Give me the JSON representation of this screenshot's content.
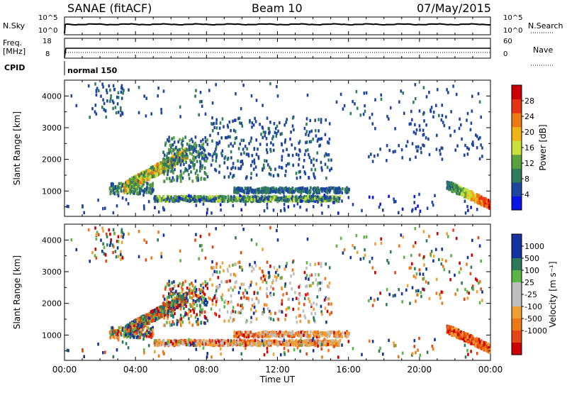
{
  "header": {
    "radar": "SANAE (fitACF)",
    "beam": "Beam 10",
    "date": "07/May/2015"
  },
  "noise_panel": {
    "left_label": "N.Sky",
    "left_ticks": [
      "10^5",
      "10^0"
    ],
    "right_label": "N.Search",
    "right_ticks": [
      "10^5",
      "10^0"
    ]
  },
  "freq_panel": {
    "left_label_1": "Freq.",
    "left_label_2": "[MHz]",
    "left_ticks": [
      "18",
      "8"
    ],
    "right_label": "Nave",
    "right_ticks": [
      "60",
      "0"
    ]
  },
  "cpid": {
    "label": "CPID",
    "value": "normal 150"
  },
  "colors": {
    "power": [
      "#0a14e6",
      "#1e46a0",
      "#2e7d5a",
      "#5aa03c",
      "#c8e03c",
      "#f0b418",
      "#f07814",
      "#e63214",
      "#cc0000"
    ],
    "velocity_pos": [
      "#1432a0",
      "#2d7a5a",
      "#5ab446"
    ],
    "velocity_mid": "#bebebe",
    "velocity_neg": [
      "#f0a030",
      "#f07814",
      "#e64614",
      "#cc0000"
    ]
  },
  "chart_data": [
    {
      "type": "line",
      "panel": "noise",
      "series": [
        {
          "name": "N.Sky",
          "style": "solid"
        },
        {
          "name": "N.Search",
          "style": "dotted"
        }
      ]
    },
    {
      "type": "line",
      "panel": "frequency",
      "series": [
        {
          "name": "Freq.",
          "style": "solid"
        },
        {
          "name": "Nave",
          "style": "dotted"
        }
      ]
    },
    {
      "type": "heatmap",
      "panel": "power",
      "ylabel": "Slant Range [km]",
      "ylim": [
        200,
        4500
      ],
      "yticks": [
        "1000",
        "2000",
        "3000",
        "4000"
      ],
      "xlim": [
        "00:00",
        "24:00"
      ],
      "colorbar_label": "Power [dB]",
      "colorbar_ticks": [
        "4",
        "8",
        "12",
        "16",
        "20",
        "24",
        "28"
      ],
      "colorbar_range": [
        0,
        32
      ],
      "features": [
        {
          "desc": "arc",
          "t_start": 3.3,
          "t_end": 6.9,
          "r_start": 1100,
          "r_end": 2200
        },
        {
          "desc": "band",
          "t_start": 5.0,
          "t_end": 15.5,
          "r": 750
        },
        {
          "desc": "band",
          "t_start": 10.0,
          "t_end": 16.0,
          "r": 1020
        },
        {
          "desc": "late echoes",
          "t_start": 21.5,
          "t_end": 24.0,
          "r_start": 1200,
          "r_end": 500
        }
      ]
    },
    {
      "type": "heatmap",
      "panel": "velocity",
      "ylabel": "Slant Range [km]",
      "ylim": [
        200,
        4500
      ],
      "yticks": [
        "1000",
        "2000",
        "3000",
        "4000"
      ],
      "xlim": [
        "00:00",
        "24:00"
      ],
      "xticks": [
        "00:00",
        "04:00",
        "08:00",
        "12:00",
        "16:00",
        "20:00",
        "00:00"
      ],
      "xlabel": "Time UT",
      "colorbar_label": "Velocity [m s⁻¹]",
      "colorbar_ticks": [
        "1000",
        "500",
        "100",
        "25",
        "-25",
        "-100",
        "-500",
        "-1000"
      ]
    }
  ]
}
